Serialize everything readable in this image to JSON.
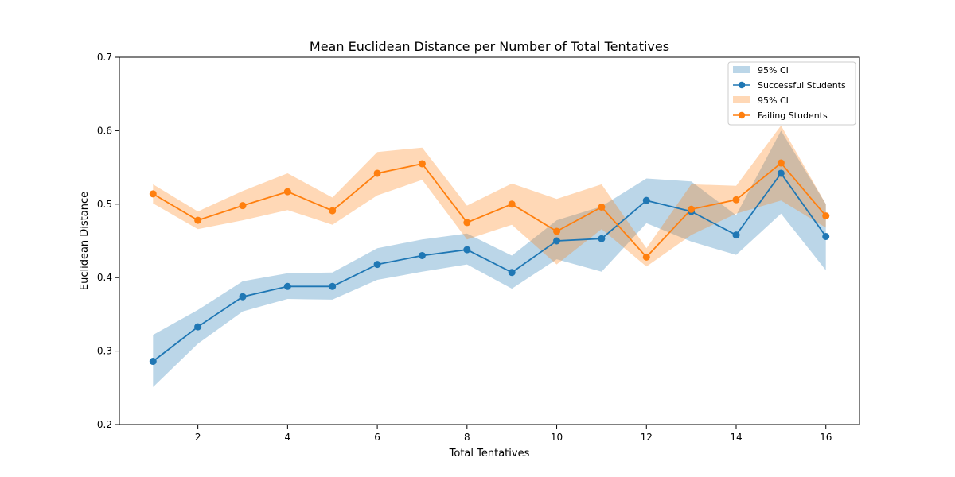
{
  "chart_data": {
    "type": "line",
    "title": "Mean Euclidean Distance per Number of Total Tentatives",
    "xlabel": "Total Tentatives",
    "ylabel": "Euclidean Distance",
    "xlim": [
      0.25,
      16.75
    ],
    "ylim": [
      0.2,
      0.7
    ],
    "xticks": [
      2,
      4,
      6,
      8,
      10,
      12,
      14,
      16
    ],
    "yticks": [
      0.2,
      0.3,
      0.4,
      0.5,
      0.6,
      0.7
    ],
    "grid": false,
    "legend_position": "top-right",
    "x": [
      1,
      2,
      3,
      4,
      5,
      6,
      7,
      8,
      9,
      10,
      11,
      12,
      13,
      14,
      15,
      16
    ],
    "series": [
      {
        "name": "Successful Students",
        "ci_label": "95% CI",
        "color": "#1f77b4",
        "values": [
          0.286,
          0.333,
          0.374,
          0.388,
          0.388,
          0.418,
          0.43,
          0.438,
          0.407,
          0.45,
          0.453,
          0.505,
          0.49,
          0.458,
          0.542,
          0.456
        ],
        "ci_lower": [
          0.251,
          0.31,
          0.354,
          0.371,
          0.37,
          0.397,
          0.408,
          0.418,
          0.385,
          0.425,
          0.408,
          0.474,
          0.449,
          0.431,
          0.487,
          0.41
        ],
        "ci_upper": [
          0.322,
          0.356,
          0.395,
          0.406,
          0.407,
          0.44,
          0.452,
          0.46,
          0.43,
          0.478,
          0.497,
          0.535,
          0.531,
          0.485,
          0.6,
          0.5
        ]
      },
      {
        "name": "Failing Students",
        "ci_label": "95% CI",
        "color": "#ff7f0e",
        "values": [
          0.514,
          0.478,
          0.498,
          0.517,
          0.491,
          0.542,
          0.555,
          0.475,
          0.5,
          0.463,
          0.496,
          0.428,
          0.493,
          0.506,
          0.556,
          0.484
        ],
        "ci_lower": [
          0.501,
          0.466,
          0.478,
          0.492,
          0.472,
          0.512,
          0.533,
          0.452,
          0.472,
          0.418,
          0.466,
          0.415,
          0.458,
          0.487,
          0.505,
          0.468
        ],
        "ci_upper": [
          0.527,
          0.49,
          0.518,
          0.542,
          0.509,
          0.571,
          0.577,
          0.498,
          0.528,
          0.507,
          0.527,
          0.44,
          0.527,
          0.525,
          0.607,
          0.5
        ]
      }
    ]
  }
}
